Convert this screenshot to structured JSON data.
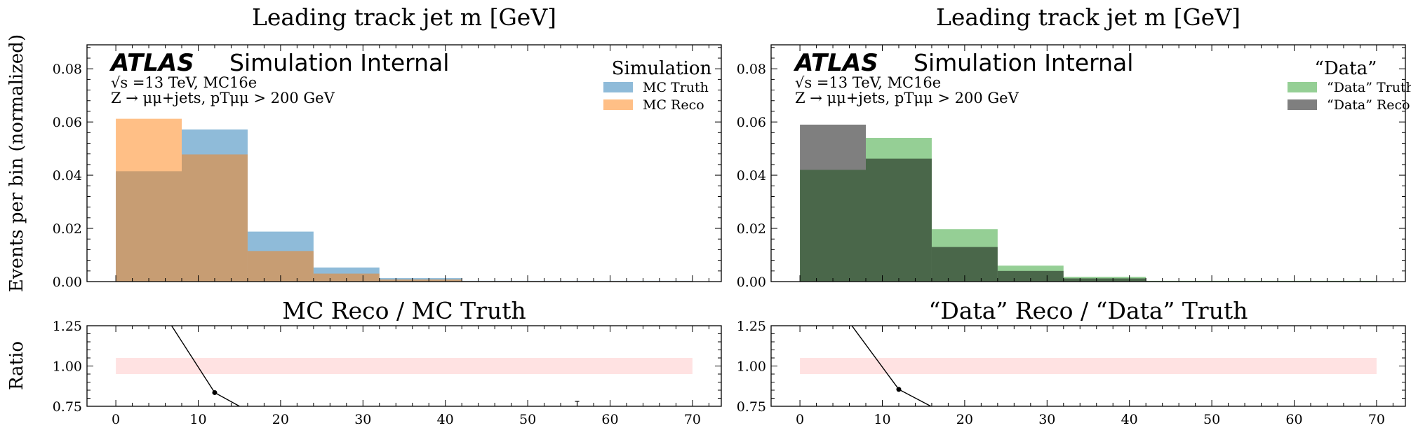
{
  "figure": {
    "ylabel_main": "Events per bin (normalized)",
    "ylabel_ratio": "Ratio"
  },
  "chart_data": [
    {
      "type": "bar",
      "title": "Leading track jet m [GeV]",
      "atlas_label": "ATLAS",
      "atlas_sublabel": "Simulation Internal",
      "info_line1": "√s =13 TeV, MC16e",
      "info_line2": "Z → μμ+jets, pTμμ > 200 GeV",
      "legend_title": "Simulation",
      "bin_edges": [
        0,
        8,
        16,
        24,
        32,
        42,
        70
      ],
      "xlim": [
        -3.5,
        73.5
      ],
      "ylim": [
        0,
        0.089
      ],
      "yticks": [
        "0.00",
        "0.02",
        "0.04",
        "0.06",
        "0.08"
      ],
      "xticks": [
        "0",
        "10",
        "20",
        "30",
        "40",
        "50",
        "60",
        "70"
      ],
      "series": [
        {
          "name": "MC Truth",
          "color": "#1f77b4",
          "values": [
            0.0415,
            0.0572,
            0.0188,
            0.0053,
            0.0013,
            0.0003
          ]
        },
        {
          "name": "MC Reco",
          "color": "#ff7f0e",
          "values": [
            0.0612,
            0.0478,
            0.0115,
            0.003,
            0.0008,
            0.0002
          ]
        }
      ],
      "ratio": {
        "title": "MC Reco / MC Truth",
        "ylim": [
          0.75,
          1.25
        ],
        "yticks": [
          "0.75",
          "1.00",
          "1.25"
        ],
        "band": [
          0.95,
          1.05
        ],
        "points": [
          {
            "x": 4,
            "y": 1.47
          },
          {
            "x": 12,
            "y": 0.835
          },
          {
            "x": 20,
            "y": 0.61
          }
        ]
      }
    },
    {
      "type": "bar",
      "title": "Leading track jet m [GeV]",
      "atlas_label": "ATLAS",
      "atlas_sublabel": "Simulation Internal",
      "info_line1": "√s =13 TeV, MC16e",
      "info_line2": "Z → μμ+jets, pTμμ > 200 GeV",
      "legend_title": "“Data”",
      "bin_edges": [
        0,
        8,
        16,
        24,
        32,
        42,
        70
      ],
      "xlim": [
        -3.5,
        73.5
      ],
      "ylim": [
        0,
        0.089
      ],
      "yticks": [
        "0.00",
        "0.02",
        "0.04",
        "0.06",
        "0.08"
      ],
      "xticks": [
        "0",
        "10",
        "20",
        "30",
        "40",
        "50",
        "60",
        "70"
      ],
      "series": [
        {
          "name": "“Data” Truth",
          "color": "#2ca02c",
          "values": [
            0.042,
            0.054,
            0.0197,
            0.006,
            0.0018,
            0.0003
          ]
        },
        {
          "name": "“Data” Reco",
          "color": "#000000",
          "values": [
            0.059,
            0.0462,
            0.013,
            0.004,
            0.0012,
            0.0002
          ]
        }
      ],
      "ratio": {
        "title": "“Data” Reco / “Data” Truth",
        "ylim": [
          0.75,
          1.25
        ],
        "yticks": [
          "0.75",
          "1.00",
          "1.25"
        ],
        "band": [
          0.95,
          1.05
        ],
        "points": [
          {
            "x": 4,
            "y": 1.41
          },
          {
            "x": 12,
            "y": 0.855
          },
          {
            "x": 20,
            "y": 0.64
          }
        ]
      }
    }
  ]
}
